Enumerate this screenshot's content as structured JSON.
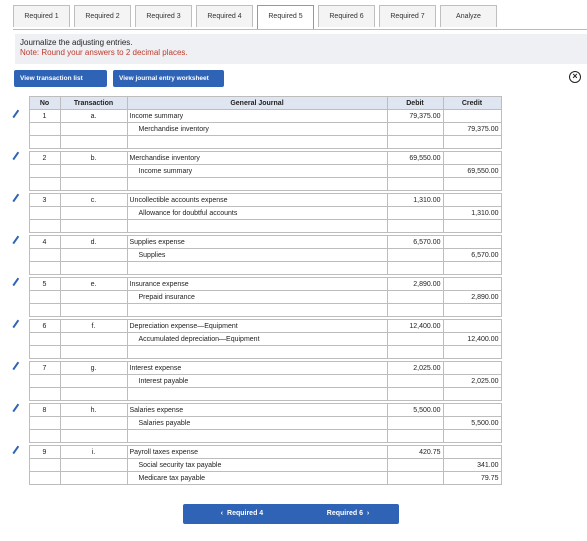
{
  "tabs": [
    "Required 1",
    "Required 2",
    "Required 3",
    "Required 4",
    "Required 5",
    "Required 6",
    "Required 7",
    "Analyze"
  ],
  "active_tab_index": 4,
  "instruction": {
    "line1": "Journalize the adjusting entries.",
    "line2": "Note: Round your answers to 2 decimal places."
  },
  "buttons": {
    "view_transaction_list": "View transaction list",
    "view_journal_worksheet": "View journal entry worksheet",
    "close_symbol": "×",
    "prev": "Required 4",
    "next": "Required 6"
  },
  "table": {
    "headers": {
      "no": "No",
      "transaction": "Transaction",
      "journal": "General Journal",
      "debit": "Debit",
      "credit": "Credit"
    },
    "entries": [
      {
        "no": "1",
        "tr": "a.",
        "lines": [
          {
            "acc": "Income summary",
            "debit": "79,375.00",
            "credit": ""
          },
          {
            "acc": "Merchandise inventory",
            "debit": "",
            "credit": "79,375.00"
          }
        ]
      },
      {
        "no": "2",
        "tr": "b.",
        "lines": [
          {
            "acc": "Merchandise inventory",
            "debit": "69,550.00",
            "credit": ""
          },
          {
            "acc": "Income summary",
            "debit": "",
            "credit": "69,550.00"
          }
        ]
      },
      {
        "no": "3",
        "tr": "c.",
        "lines": [
          {
            "acc": "Uncollectible accounts expense",
            "debit": "1,310.00",
            "credit": ""
          },
          {
            "acc": "Allowance for doubtful accounts",
            "debit": "",
            "credit": "1,310.00"
          }
        ]
      },
      {
        "no": "4",
        "tr": "d.",
        "lines": [
          {
            "acc": "Supplies expense",
            "debit": "6,570.00",
            "credit": ""
          },
          {
            "acc": "Supplies",
            "debit": "",
            "credit": "6,570.00"
          }
        ]
      },
      {
        "no": "5",
        "tr": "e.",
        "lines": [
          {
            "acc": "Insurance expense",
            "debit": "2,890.00",
            "credit": ""
          },
          {
            "acc": "Prepaid insurance",
            "debit": "",
            "credit": "2,890.00"
          }
        ]
      },
      {
        "no": "6",
        "tr": "f.",
        "lines": [
          {
            "acc": "Depreciation expense—Equipment",
            "debit": "12,400.00",
            "credit": ""
          },
          {
            "acc": "Accumulated depreciation—Equipment",
            "debit": "",
            "credit": "12,400.00"
          }
        ]
      },
      {
        "no": "7",
        "tr": "g.",
        "lines": [
          {
            "acc": "Interest expense",
            "debit": "2,025.00",
            "credit": ""
          },
          {
            "acc": "Interest payable",
            "debit": "",
            "credit": "2,025.00"
          }
        ]
      },
      {
        "no": "8",
        "tr": "h.",
        "lines": [
          {
            "acc": "Salaries expense",
            "debit": "5,500.00",
            "credit": ""
          },
          {
            "acc": "Salaries payable",
            "debit": "",
            "credit": "5,500.00"
          }
        ]
      },
      {
        "no": "9",
        "tr": "i.",
        "lines": [
          {
            "acc": "Payroll taxes expense",
            "debit": "420.75",
            "credit": ""
          },
          {
            "acc": "Social security tax payable",
            "debit": "",
            "credit": "341.00"
          },
          {
            "acc": "Medicare tax payable",
            "debit": "",
            "credit": "79.75"
          }
        ]
      }
    ]
  },
  "colors": {
    "accent": "#2f63b6",
    "note": "#c0392b",
    "header_bg": "#dfe6f1"
  }
}
